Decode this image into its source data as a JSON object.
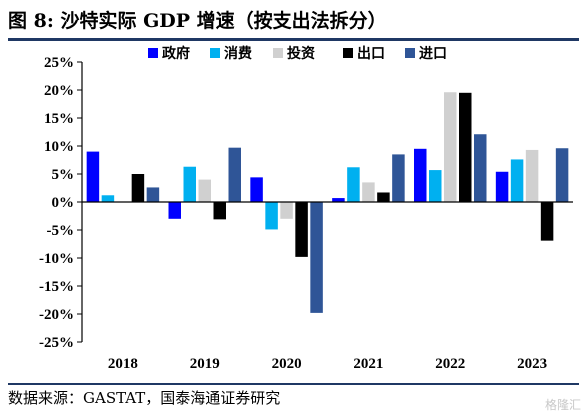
{
  "title": "图 8:  沙特实际 GDP 增速（按支出法拆分）",
  "source": "数据来源：GASTAT，国泰海通证券研究",
  "watermark": "格隆汇",
  "chart_data": {
    "type": "bar",
    "title": "",
    "xlabel": "",
    "ylabel": "",
    "categories": [
      "2018",
      "2019",
      "2020",
      "2021",
      "2022",
      "2023"
    ],
    "ylim": [
      -25,
      25
    ],
    "yticks": [
      -25,
      -20,
      -15,
      -10,
      -5,
      0,
      5,
      10,
      15,
      20,
      25
    ],
    "ytick_format": "percent",
    "grid": false,
    "legend": "top",
    "series": [
      {
        "name": "政府",
        "color": "#0000ff",
        "values": [
          9.0,
          -3.0,
          4.4,
          0.7,
          9.5,
          5.4
        ]
      },
      {
        "name": "消费",
        "color": "#00b0f0",
        "values": [
          1.2,
          6.3,
          -4.9,
          6.2,
          5.7,
          7.6
        ]
      },
      {
        "name": "投资",
        "color": "#d0d0d0",
        "values": [
          0,
          4.0,
          -3.0,
          3.5,
          19.6,
          9.3
        ]
      },
      {
        "name": "出口",
        "color": "#000000",
        "values": [
          5.0,
          -3.1,
          -9.8,
          1.7,
          19.5,
          -6.9
        ]
      },
      {
        "name": "进口",
        "color": "#2f5597",
        "values": [
          2.6,
          9.7,
          -19.8,
          8.5,
          12.1,
          9.6
        ]
      }
    ]
  }
}
